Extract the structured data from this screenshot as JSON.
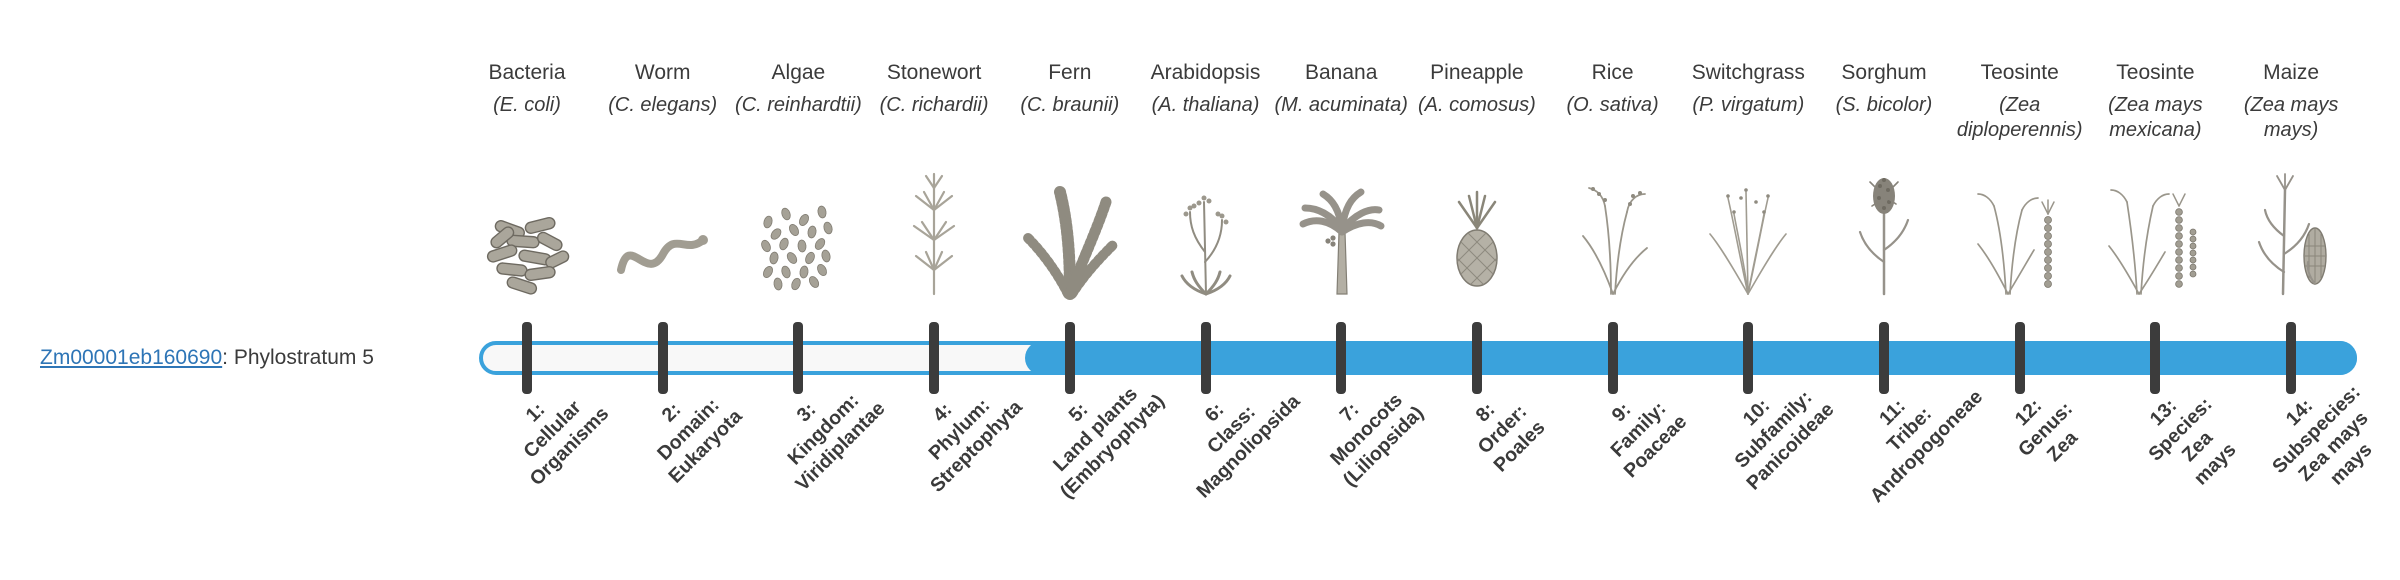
{
  "gene": {
    "id": "Zm00001eb160690",
    "rest": ": Phylostratum 5"
  },
  "timeline": {
    "bar_color": "#3aa2dc",
    "bar_track_bg": "#f8f8f8",
    "tick_color": "#3c3c3c",
    "filled_from_stratum": 5,
    "total_strata": 14
  },
  "strata": [
    {
      "number": 1,
      "common_name": "Bacteria",
      "latin_name": "(E. coli)",
      "icon": "bacteria-icon",
      "label_lines": [
        "1:",
        "Cellular",
        "Organisms"
      ]
    },
    {
      "number": 2,
      "common_name": "Worm",
      "latin_name": "(C. elegans)",
      "icon": "worm-icon",
      "label_lines": [
        "2:",
        "Domain:",
        "Eukaryota"
      ]
    },
    {
      "number": 3,
      "common_name": "Algae",
      "latin_name": "(C. reinhardtii)",
      "icon": "algae-icon",
      "label_lines": [
        "3:",
        "Kingdom:",
        "Viridiplantae"
      ]
    },
    {
      "number": 4,
      "common_name": "Stonewort",
      "latin_name": "(C. richardii)",
      "icon": "stonewort-icon",
      "label_lines": [
        "4:",
        "Phylum:",
        "Streptophyta"
      ]
    },
    {
      "number": 5,
      "common_name": "Fern",
      "latin_name": "(C. braunii)",
      "icon": "fern-icon",
      "label_lines": [
        "5:",
        "Land plants",
        "(Embryophyta)"
      ]
    },
    {
      "number": 6,
      "common_name": "Arabidopsis",
      "latin_name": "(A. thaliana)",
      "icon": "arabidopsis-icon",
      "label_lines": [
        "6:",
        "Class:",
        "Magnoliopsida"
      ]
    },
    {
      "number": 7,
      "common_name": "Banana",
      "latin_name": "(M. acuminata)",
      "icon": "banana-icon",
      "label_lines": [
        "7:",
        "Monocots",
        "(Liliopsida)"
      ]
    },
    {
      "number": 8,
      "common_name": "Pineapple",
      "latin_name": "(A. comosus)",
      "icon": "pineapple-icon",
      "label_lines": [
        "8:",
        "Order:",
        "Poales"
      ]
    },
    {
      "number": 9,
      "common_name": "Rice",
      "latin_name": "(O. sativa)",
      "icon": "rice-icon",
      "label_lines": [
        "9:",
        "Family:",
        "Poaceae"
      ]
    },
    {
      "number": 10,
      "common_name": "Switchgrass",
      "latin_name": "(P. virgatum)",
      "icon": "switchgrass-icon",
      "label_lines": [
        "10:",
        "Subfamily:",
        "Panicoideae"
      ]
    },
    {
      "number": 11,
      "common_name": "Sorghum",
      "latin_name": "(S. bicolor)",
      "icon": "sorghum-icon",
      "label_lines": [
        "11:",
        "Tribe:",
        "Andropogoneae"
      ]
    },
    {
      "number": 12,
      "common_name": "Teosinte",
      "latin_name": "(Zea diploperennis)",
      "icon": "teosinte-icon",
      "label_lines": [
        "12:",
        "Genus:",
        "Zea"
      ]
    },
    {
      "number": 13,
      "common_name": "Teosinte",
      "latin_name": "(Zea mays mexicana)",
      "icon": "teosinte2-icon",
      "label_lines": [
        "13:",
        "Species:",
        "Zea",
        "mays"
      ]
    },
    {
      "number": 14,
      "common_name": "Maize",
      "latin_name": "(Zea mays mays)",
      "icon": "maize-icon",
      "label_lines": [
        "14:",
        "Subspecies:",
        "Zea mays",
        "mays"
      ]
    }
  ]
}
